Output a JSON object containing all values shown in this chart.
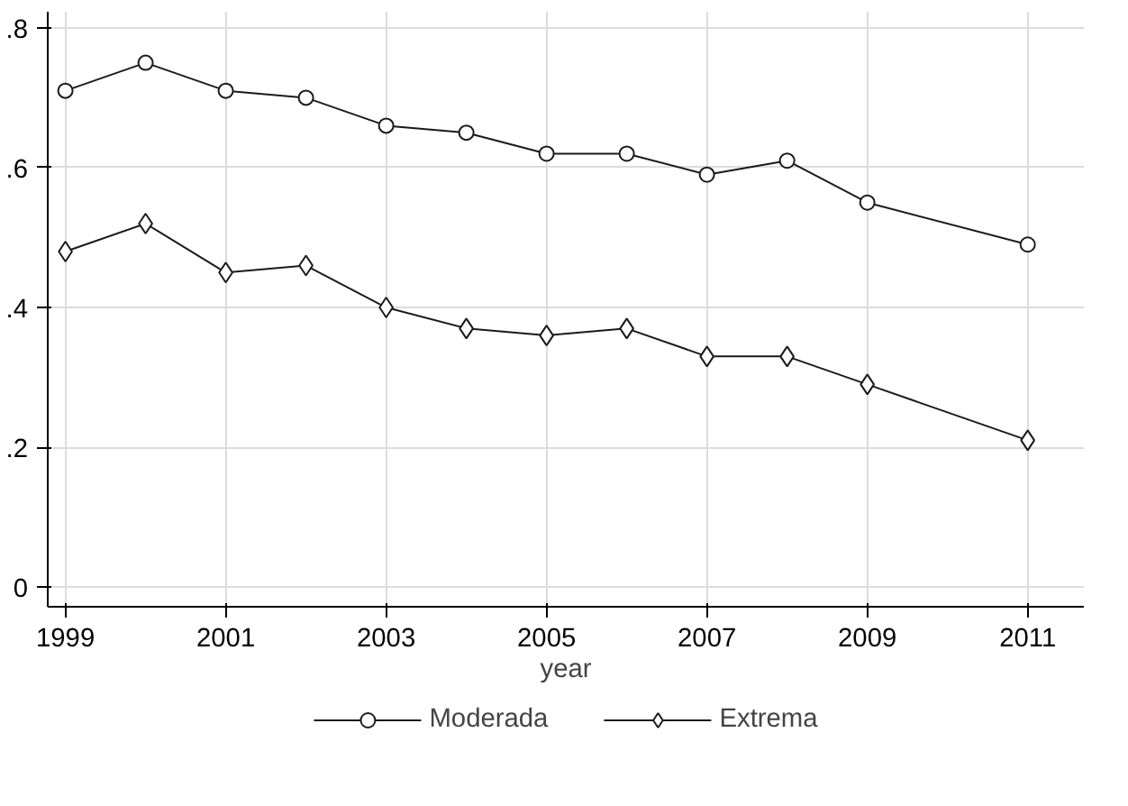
{
  "chart_data": {
    "type": "line",
    "xlabel": "year",
    "x": [
      1999,
      2000,
      2001,
      2002,
      2003,
      2004,
      2005,
      2006,
      2007,
      2008,
      2009,
      2011
    ],
    "series": [
      {
        "name": "Moderada",
        "color": "#1a1a1a",
        "marker": "circle",
        "values": [
          0.71,
          0.75,
          0.71,
          0.7,
          0.66,
          0.65,
          0.62,
          0.62,
          0.59,
          0.61,
          0.55,
          0.49
        ]
      },
      {
        "name": "Extrema",
        "color": "#1a1a1a",
        "marker": "diamond",
        "values": [
          0.48,
          0.52,
          0.45,
          0.46,
          0.4,
          0.37,
          0.36,
          0.37,
          0.33,
          0.33,
          0.29,
          0.21
        ]
      }
    ],
    "xlim": [
      1998.78,
      2011.7
    ],
    "xticks": [
      1999,
      2001,
      2003,
      2005,
      2007,
      2009,
      2011
    ],
    "ylim": [
      -0.028,
      0.823
    ],
    "yticks": [
      0,
      {
        "value": 0.2,
        "label": ".2"
      },
      {
        "value": 0.4,
        "label": ".4"
      },
      {
        "value": 0.6,
        "label": ".6"
      },
      {
        "value": 0.8,
        "label": ".8"
      }
    ],
    "grid": true,
    "legend": "bottom",
    "line_style": "solid"
  }
}
